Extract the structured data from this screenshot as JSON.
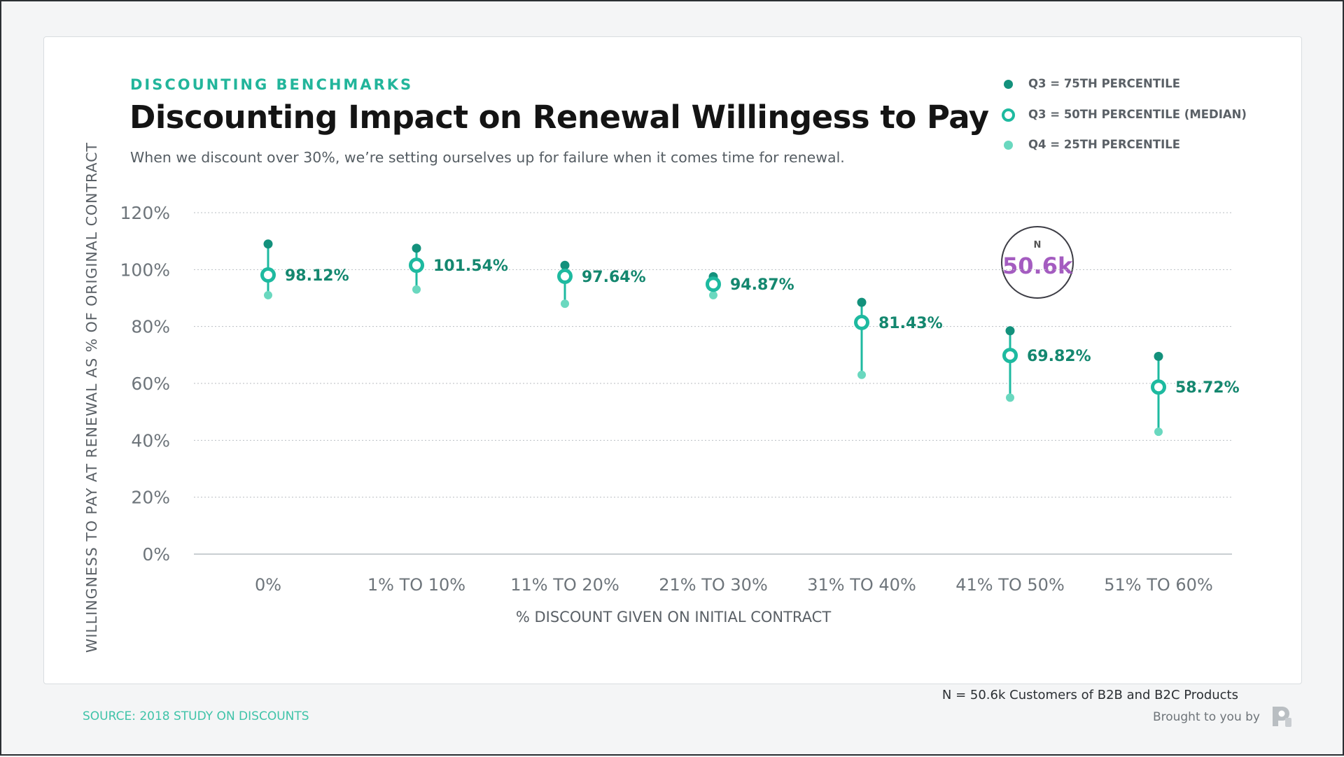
{
  "header": {
    "eyebrow": "DISCOUNTING BENCHMARKS",
    "title": "Discounting Impact on Renewal Willingess to Pay",
    "subtitle": "When we discount over 30%, we’re setting ourselves up for failure when it comes time for renewal."
  },
  "legend": [
    {
      "label": "Q3 = 75TH PERCENTILE",
      "marker": "filled-dot",
      "color": "#13917c"
    },
    {
      "label": "Q3 = 50TH PERCENTILE (MEDIAN)",
      "marker": "ring",
      "color": "#1ebaa0"
    },
    {
      "label": "Q4 = 25TH PERCENTILE",
      "marker": "filled-dot",
      "color": "#6ad8bf"
    }
  ],
  "badge": {
    "label": "N",
    "value": "50.6k"
  },
  "footnote": "N = 50.6k Customers of B2B and B2C Products",
  "footer": {
    "source": "SOURCE: 2018 STUDY ON DISCOUNTS",
    "brought_by": "Brought to you by",
    "logo_icon": "brand-logo-icon"
  },
  "colors": {
    "q75": "#13917c",
    "median": "#1ebaa0",
    "q25": "#6ad8bf",
    "value_label": "#14876f",
    "badge_value": "#a45cc0"
  },
  "chart_data": {
    "type": "scatter",
    "xlabel": "% DISCOUNT GIVEN ON INITIAL CONTRACT",
    "ylabel": "WILLINGNESS TO PAY AT RENEWAL AS % OF ORIGINAL CONTRACT",
    "ylim": [
      0,
      120
    ],
    "yticks": [
      0,
      20,
      40,
      60,
      80,
      100,
      120
    ],
    "ytick_labels": [
      "0%",
      "20%",
      "40%",
      "60%",
      "80%",
      "100%",
      "120%"
    ],
    "grid": true,
    "legend_position": "top-right",
    "categories": [
      "0%",
      "1% TO 10%",
      "11% TO 20%",
      "21% TO 30%",
      "31% TO 40%",
      "41% TO 50%",
      "51% TO 60%"
    ],
    "series": [
      {
        "name": "Q3 = 75TH PERCENTILE",
        "values": [
          109,
          107.5,
          101.5,
          97.5,
          88.5,
          78.5,
          69.5
        ]
      },
      {
        "name": "Q3 = 50TH PERCENTILE (MEDIAN)",
        "values": [
          98.12,
          101.54,
          97.64,
          94.87,
          81.43,
          69.82,
          58.72
        ]
      },
      {
        "name": "Q4 = 25TH PERCENTILE",
        "values": [
          91,
          93,
          88,
          91,
          63,
          55,
          43
        ]
      }
    ],
    "median_labels": [
      "98.12%",
      "101.54%",
      "97.64%",
      "94.87%",
      "81.43%",
      "69.82%",
      "58.72%"
    ]
  }
}
